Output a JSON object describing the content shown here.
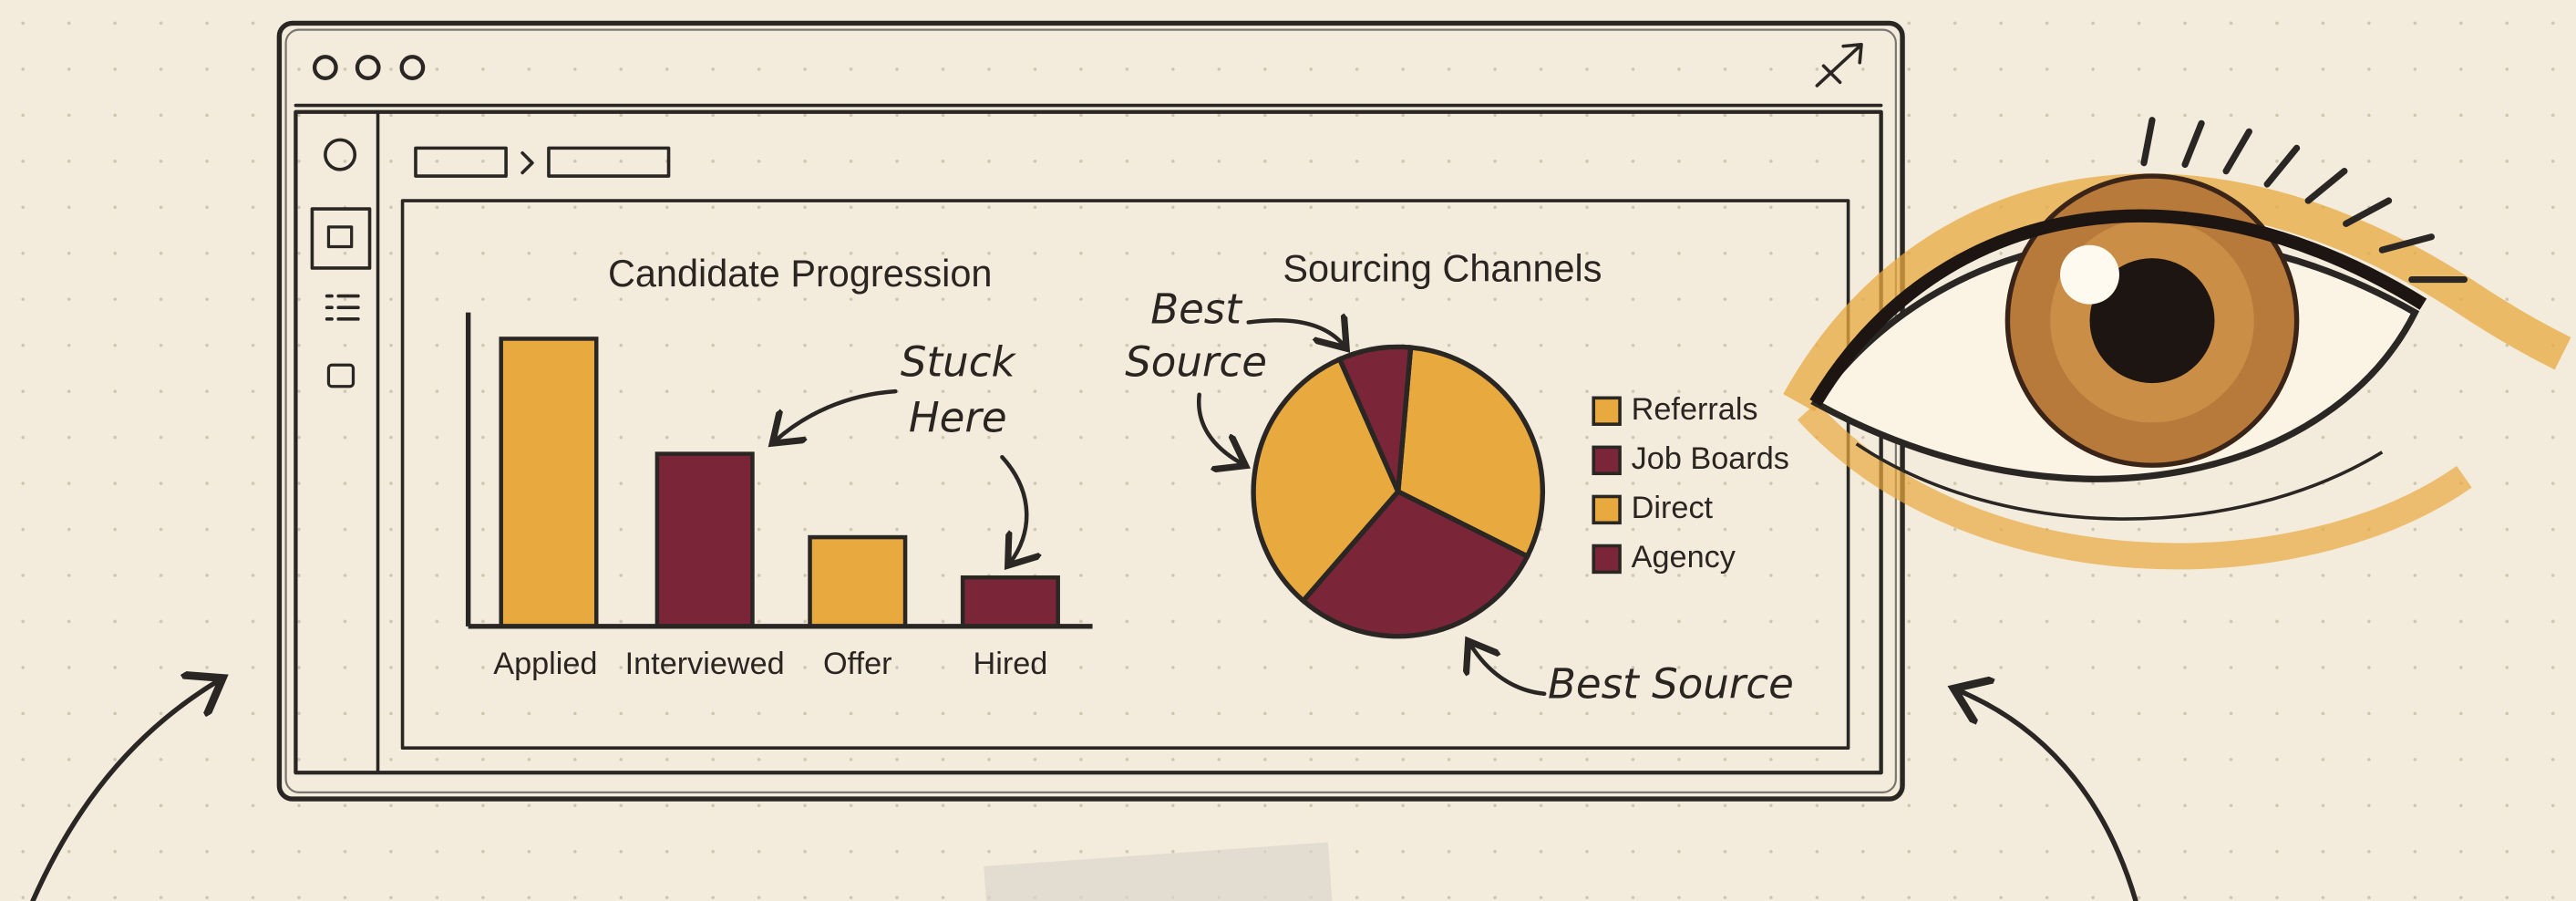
{
  "chart_data": [
    {
      "type": "bar",
      "title": "Candidate Progression",
      "categories": [
        "Applied",
        "Interviewed",
        "Offer",
        "Hired"
      ],
      "values": [
        100,
        60,
        31,
        17
      ],
      "colors": [
        "#e8a93f",
        "#7b2638",
        "#e8a93f",
        "#7b2638"
      ],
      "annotations": [
        [
          "Stuck",
          "Here"
        ]
      ]
    },
    {
      "type": "pie",
      "title": "Sourcing Channels",
      "categories": [
        "Referrals",
        "Job Boards",
        "Direct",
        "Agency"
      ],
      "values": [
        31,
        8,
        32,
        29
      ],
      "colors": [
        "#e8a93f",
        "#7b2638",
        "#e8a93f",
        "#7b2638"
      ],
      "legend": "right",
      "annotations": [
        [
          "Best",
          "Source"
        ],
        [
          "Best Source"
        ]
      ]
    }
  ]
}
